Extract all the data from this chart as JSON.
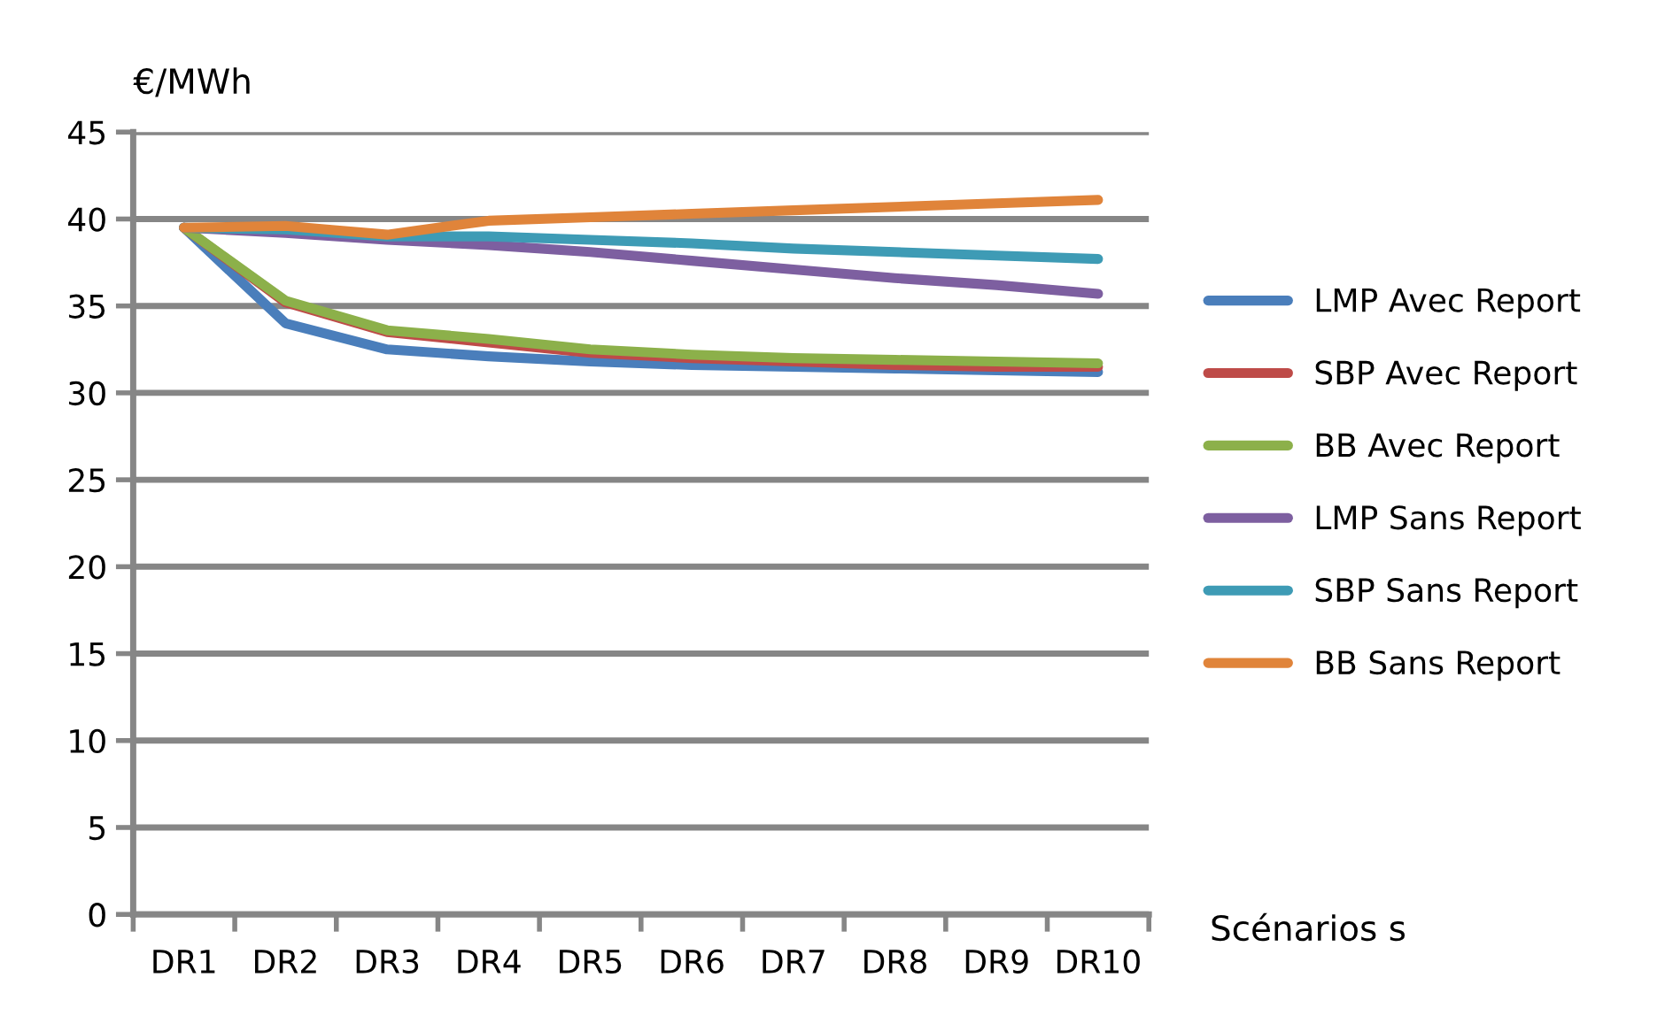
{
  "chart_data": {
    "type": "line",
    "ylabel": "€/MWh",
    "xlabel": "Scénarios s",
    "categories": [
      "DR1",
      "DR2",
      "DR3",
      "DR4",
      "DR5",
      "DR6",
      "DR7",
      "DR8",
      "DR9",
      "DR10"
    ],
    "series": [
      {
        "name": "LMP Avec Report",
        "color": "#4a7ebb",
        "values": [
          39.5,
          34.0,
          32.5,
          32.1,
          31.8,
          31.6,
          31.5,
          31.4,
          31.3,
          31.2
        ]
      },
      {
        "name": "SBP Avec Report",
        "color": "#be4b48",
        "values": [
          39.5,
          35.2,
          33.5,
          32.9,
          32.3,
          32.0,
          31.8,
          31.6,
          31.5,
          31.5
        ]
      },
      {
        "name": "BB Avec Report",
        "color": "#8cb04a",
        "values": [
          39.5,
          35.3,
          33.6,
          33.1,
          32.5,
          32.2,
          32.0,
          31.9,
          31.8,
          31.7
        ]
      },
      {
        "name": "LMP Sans Report",
        "color": "#7d5fa0",
        "values": [
          39.5,
          39.2,
          38.8,
          38.5,
          38.1,
          37.6,
          37.1,
          36.6,
          36.2,
          35.7
        ]
      },
      {
        "name": "SBP Sans Report",
        "color": "#3e9bb5",
        "values": [
          39.5,
          39.4,
          39.0,
          39.0,
          38.8,
          38.6,
          38.3,
          38.1,
          37.9,
          37.7
        ]
      },
      {
        "name": "BB Sans Report",
        "color": "#e0843a",
        "values": [
          39.5,
          39.6,
          39.1,
          39.9,
          40.1,
          40.3,
          40.5,
          40.7,
          40.9,
          41.1
        ]
      }
    ],
    "ylim": [
      0,
      45
    ],
    "yticks": [
      0,
      5,
      10,
      15,
      20,
      25,
      30,
      35,
      40,
      45
    ],
    "grid": "y",
    "legend": "right"
  }
}
